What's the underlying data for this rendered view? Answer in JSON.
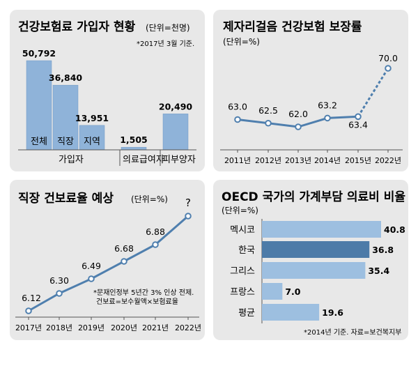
{
  "chart_data": [
    {
      "type": "bar",
      "title": "건강보험료 가입자 현황",
      "unit": "(단위=천명)",
      "note": "*2017년 3월 기준.",
      "bars": [
        {
          "name": "전체",
          "value": 50792,
          "label": "50,792"
        },
        {
          "name": "직장",
          "value": 36840,
          "label": "36,840"
        },
        {
          "name": "지역",
          "value": 13951,
          "label": "13,951"
        },
        {
          "name": "의료급여자",
          "value": 1505,
          "label": "1,505"
        },
        {
          "name": "피부양자",
          "value": 20490,
          "label": "20,490"
        }
      ],
      "group_labels": [
        "가입자",
        "의료급여자",
        "피부양자"
      ],
      "colors": {
        "bar": "#8fb3d9",
        "bar_edge": "#6f98c4"
      }
    },
    {
      "type": "line",
      "title": "제자리걸음 건강보험 보장률",
      "unit": "(단위=%)",
      "categories": [
        "2011년",
        "2012년",
        "2013년",
        "2014년",
        "2015년",
        "2022년"
      ],
      "values": [
        63.0,
        62.5,
        62.0,
        63.2,
        63.4,
        70.0
      ],
      "labels": [
        "63.0",
        "62.5",
        "62.0",
        "63.2",
        "63.4",
        "70.0"
      ],
      "projected_from_index": 4,
      "colors": {
        "line": "#4f7fae"
      }
    },
    {
      "type": "line",
      "title": "직장 건보료율 예상",
      "unit": "(단위=%)",
      "categories": [
        "2017년",
        "2018년",
        "2019년",
        "2020년",
        "2021년",
        "2022년"
      ],
      "values": [
        6.12,
        6.3,
        6.49,
        6.68,
        6.88,
        null
      ],
      "labels": [
        "6.12",
        "6.30",
        "6.49",
        "6.68",
        "6.88",
        "?"
      ],
      "notes": [
        "*문재인정부 5년간 3% 인상 전제.",
        "건보료=보수월액×보험료율"
      ],
      "colors": {
        "line": "#4f7fae"
      }
    },
    {
      "type": "bar",
      "orientation": "horizontal",
      "title": "OECD 국가의 가계부담 의료비 비율",
      "unit": "(단위=%)",
      "categories": [
        "멕시코",
        "한국",
        "그리스",
        "프랑스",
        "평균"
      ],
      "values": [
        40.8,
        36.8,
        35.4,
        7.0,
        19.6
      ],
      "labels": [
        "40.8",
        "36.8",
        "35.4",
        "7.0",
        "19.6"
      ],
      "highlight": "한국",
      "note": "*2014년 기준. 자료=보건복지부",
      "colors": {
        "bar": "#9dbfe0",
        "highlight": "#4d7ba8"
      }
    }
  ]
}
